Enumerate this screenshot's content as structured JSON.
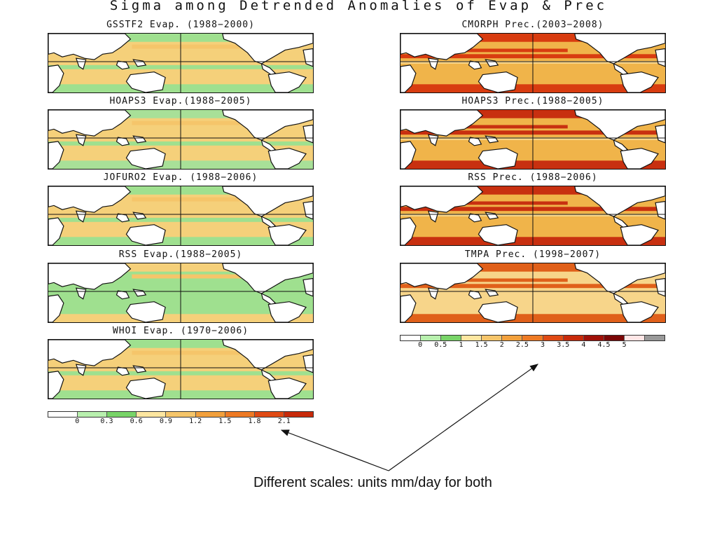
{
  "title": "Sigma among Detrended Anomalies of Evap & Prec",
  "evap_panels": [
    {
      "title": "GSSTF2 Evap. (1988−2000)",
      "bg": "#f5d07a",
      "band": "#9fe08f"
    },
    {
      "title": "HOAPS3 Evap.(1988−2005)",
      "bg": "#f5d07a",
      "band": "#a8e098"
    },
    {
      "title": "JOFURO2 Evap. (1988−2006)",
      "bg": "#f5d07a",
      "band": "#9fe08f"
    },
    {
      "title": "RSS Evap.(1988−2005)",
      "bg": "#9fe08f",
      "band": "#f5d07a"
    },
    {
      "title": "WHOI Evap. (1970−2006)",
      "bg": "#f5d07a",
      "band": "#9fe08f"
    }
  ],
  "prec_panels": [
    {
      "title": "CMORPH Prec.(2003−2008)",
      "bg": "#f0b44a",
      "band": "#d83c10"
    },
    {
      "title": "HOAPS3 Prec.(1988−2005)",
      "bg": "#f0b44a",
      "band": "#c83010"
    },
    {
      "title": "RSS Prec. (1988−2006)",
      "bg": "#f0b44a",
      "band": "#c83010"
    },
    {
      "title": "TMPA Prec. (1998−2007)",
      "bg": "#f7d58a",
      "band": "#e0601a"
    }
  ],
  "evap_scale": {
    "colors": [
      "#ffffff",
      "#b8f0ae",
      "#78d468",
      "#fde6a0",
      "#f5c56a",
      "#f2a03c",
      "#ee7a24",
      "#e04a14",
      "#c82a0a"
    ],
    "ticks": [
      "0",
      "0.3",
      "0.6",
      "0.9",
      "1.2",
      "1.5",
      "1.8",
      "2.1"
    ]
  },
  "prec_scale": {
    "colors": [
      "#ffffff",
      "#b8f0ae",
      "#78d468",
      "#fde6a0",
      "#f5c56a",
      "#f2a03c",
      "#ee7a24",
      "#e04a14",
      "#c82a0a",
      "#a01008",
      "#7a0606",
      "#ffe6e6",
      "#999999"
    ],
    "ticks": [
      "0",
      "0.5",
      "1",
      "1.5",
      "2",
      "2.5",
      "3",
      "3.5",
      "4",
      "4.5",
      "5"
    ]
  },
  "caption": "Different scales: units mm/day for both"
}
